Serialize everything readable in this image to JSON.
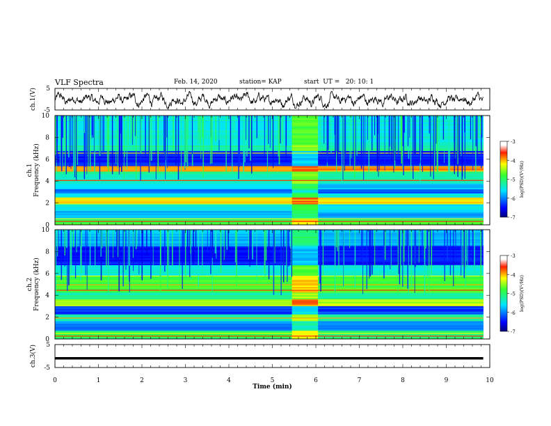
{
  "header": {
    "title": "VLF Spectra",
    "date": "Feb. 14, 2020",
    "station": "station= KAP",
    "start": "start  UT =   20: 10: 1"
  },
  "chart_data": [
    {
      "type": "line",
      "panel": "ch1-waveform",
      "ylabel": "ch.1(V)",
      "ylim": [
        -5,
        5
      ],
      "yticks": [
        "5",
        "-5"
      ],
      "color": "#000000"
    },
    {
      "type": "heatmap",
      "panel": "ch1-spectrogram",
      "ylabel": "ch.1\nFrequency (kHz)",
      "ylabel_lines": [
        "ch.1",
        "Frequency (kHz)"
      ],
      "ylim": [
        0,
        10
      ],
      "yticks": [
        "0",
        "2",
        "4",
        "6",
        "8",
        "10"
      ],
      "data_gap_min": [
        5.45,
        6.05
      ],
      "colorbar": {
        "label": "log(PSD)(V²/Hz)",
        "range": [
          -7,
          -3
        ],
        "ticks": [
          "-3",
          "-4",
          "-5",
          "-6",
          "-7"
        ]
      }
    },
    {
      "type": "heatmap",
      "panel": "ch2-spectrogram",
      "ylabel": "ch.2\nFrequency (kHz)",
      "ylabel_lines": [
        "ch.2",
        "Frequency (kHz)"
      ],
      "ylim": [
        0,
        10
      ],
      "yticks": [
        "0",
        "2",
        "4",
        "6",
        "8",
        "10"
      ],
      "data_gap_min": [
        5.45,
        6.05
      ],
      "colorbar": {
        "label": "log(PSD)(V²/Hz)",
        "range": [
          -7,
          -3
        ],
        "ticks": [
          "-3",
          "-4",
          "-5",
          "-6",
          "-7"
        ]
      }
    },
    {
      "type": "line",
      "panel": "ch3-waveform",
      "ylabel": "ch.3(V)",
      "ylim": [
        -5,
        5
      ],
      "yticks": [
        "5",
        "-5"
      ],
      "level_v": -1.0,
      "color": "#000000"
    }
  ],
  "xaxis": {
    "label": "Time (min)",
    "range": [
      0,
      10
    ],
    "ticks": [
      "0",
      "1",
      "2",
      "3",
      "4",
      "5",
      "6",
      "7",
      "8",
      "9",
      "10"
    ],
    "data_end": 9.85
  }
}
